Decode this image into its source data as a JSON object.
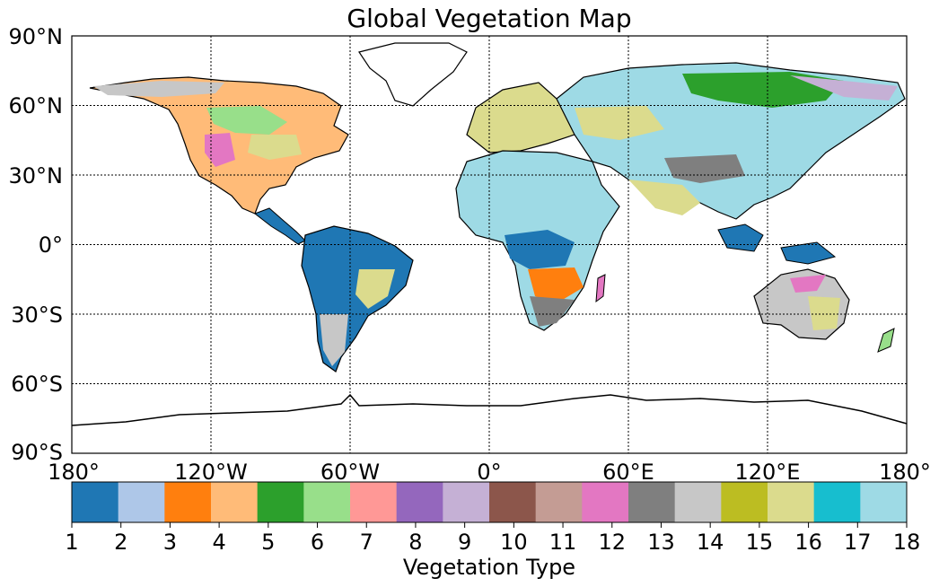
{
  "title": "Global Vegetation Map",
  "lat_labels": [
    "90°N",
    "60°N",
    "30°N",
    "0°",
    "30°S",
    "60°S",
    "90°S"
  ],
  "lon_labels": [
    "180°",
    "120°W",
    "60°W",
    "0°",
    "60°E",
    "120°E",
    "180°"
  ],
  "colorbar": {
    "label": "Vegetation Type",
    "ticks": [
      "1",
      "2",
      "3",
      "4",
      "5",
      "6",
      "7",
      "8",
      "9",
      "10",
      "11",
      "12",
      "13",
      "14",
      "15",
      "16",
      "17",
      "18"
    ],
    "colors": [
      "#1f77b4",
      "#aec7e8",
      "#ff7f0e",
      "#ffbb78",
      "#2ca02c",
      "#98df8a",
      "#ff9896",
      "#9467bd",
      "#c5b0d5",
      "#8c564b",
      "#c49c94",
      "#e377c2",
      "#7f7f7f",
      "#c7c7c7",
      "#bcbd22",
      "#dbdb8d",
      "#17becf",
      "#9edae5"
    ]
  },
  "legend_colors": {
    "ocean": "#ffffff",
    "coastline": "#000000"
  }
}
